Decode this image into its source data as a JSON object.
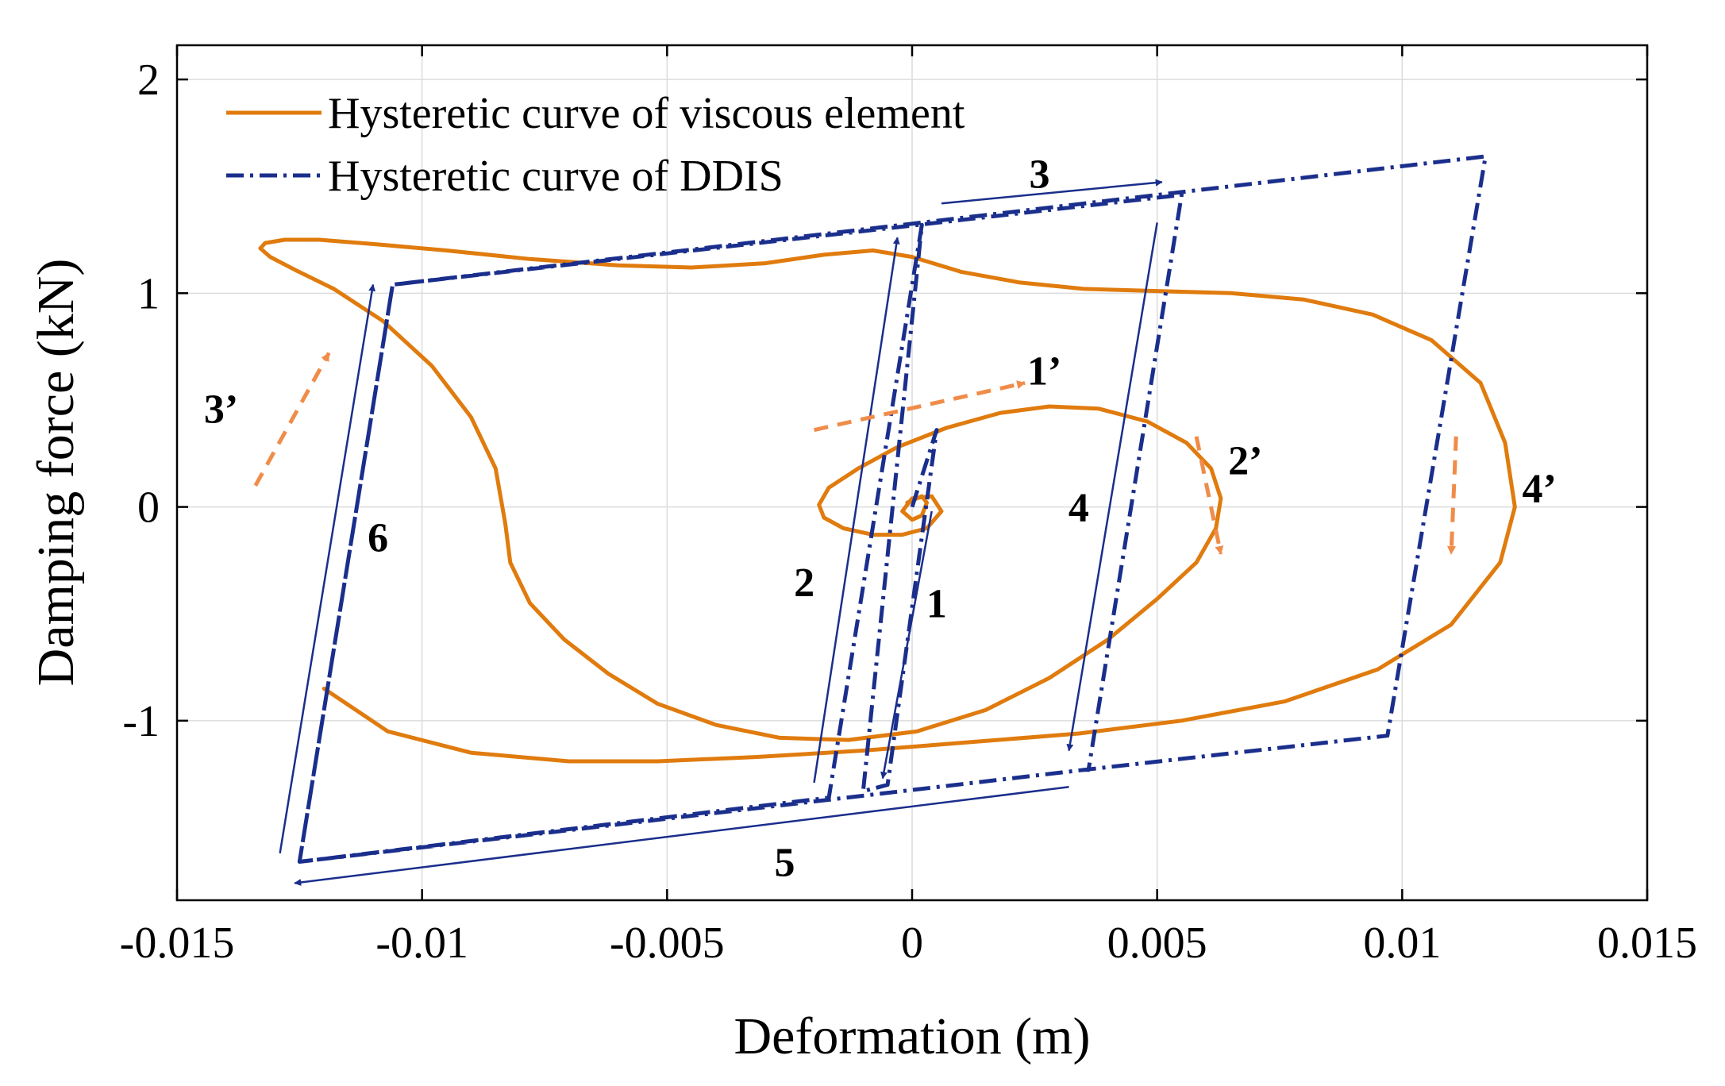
{
  "chart_data": {
    "type": "line",
    "title": "",
    "xlabel": "Deformation (m)",
    "ylabel": "Damping force (kN)",
    "xlim": [
      -0.015,
      0.015
    ],
    "ylim": [
      -1.84,
      2.16
    ],
    "grid": true,
    "legend_position": "top-left",
    "x_ticks": [
      {
        "value": -0.015,
        "label": "-0.015"
      },
      {
        "value": -0.01,
        "label": "-0.01"
      },
      {
        "value": -0.005,
        "label": "-0.005"
      },
      {
        "value": 0,
        "label": "0"
      },
      {
        "value": 0.005,
        "label": "0.005"
      },
      {
        "value": 0.01,
        "label": "0.01"
      },
      {
        "value": 0.015,
        "label": "0.015"
      }
    ],
    "y_ticks": [
      {
        "value": -1,
        "label": "-1"
      },
      {
        "value": 0,
        "label": "0"
      },
      {
        "value": 1,
        "label": "1"
      },
      {
        "value": 2,
        "label": "2"
      }
    ],
    "series": [
      {
        "name": "Hysteretic curve of viscous element",
        "color": "#E07B0E",
        "style": "solid",
        "x": [
          -0.0001,
          0.0002,
          0.0003,
          0.0002,
          0.0,
          -0.0002,
          0.0,
          0.0004,
          0.0006,
          0.0003,
          -0.0002,
          -0.0008,
          -0.0014,
          -0.0018,
          -0.0019,
          -0.0017,
          -0.0011,
          -0.0003,
          0.0007,
          0.0018,
          0.0028,
          0.0038,
          0.0048,
          0.0056,
          0.0061,
          0.0063,
          0.0062,
          0.0058,
          0.005,
          0.004,
          0.0028,
          0.0015,
          0.0001,
          -0.0013,
          -0.0027,
          -0.004,
          -0.0052,
          -0.0062,
          -0.0071,
          -0.0078,
          -0.0082,
          -0.0083,
          -0.0085,
          -0.009,
          -0.0098,
          -0.0108,
          -0.0118,
          -0.0126,
          -0.0131,
          -0.0133,
          -0.0132,
          -0.0128,
          -0.0121,
          -0.011,
          -0.0095,
          -0.0078,
          -0.006,
          -0.0045,
          -0.003,
          -0.0018,
          -0.0008,
          0.0,
          0.001,
          0.0022,
          0.0035,
          0.005,
          0.0065,
          0.008,
          0.0094,
          0.0106,
          0.0116,
          0.0121,
          0.0123,
          0.012,
          0.011,
          0.0095,
          0.0076,
          0.0055,
          0.0034,
          0.0012,
          -0.001,
          -0.0032,
          -0.0052,
          -0.007,
          -0.009,
          -0.0107,
          -0.012
        ],
        "y": [
          0.02,
          0.05,
          0.02,
          -0.04,
          -0.06,
          -0.02,
          0.04,
          0.05,
          -0.02,
          -0.1,
          -0.13,
          -0.13,
          -0.1,
          -0.05,
          0.01,
          0.09,
          0.18,
          0.28,
          0.37,
          0.44,
          0.47,
          0.46,
          0.4,
          0.3,
          0.18,
          0.04,
          -0.1,
          -0.26,
          -0.43,
          -0.62,
          -0.8,
          -0.95,
          -1.05,
          -1.09,
          -1.08,
          -1.02,
          -0.92,
          -0.78,
          -0.62,
          -0.45,
          -0.26,
          -0.08,
          0.18,
          0.42,
          0.66,
          0.87,
          1.02,
          1.11,
          1.17,
          1.21,
          1.235,
          1.25,
          1.25,
          1.23,
          1.2,
          1.16,
          1.13,
          1.12,
          1.14,
          1.18,
          1.2,
          1.17,
          1.1,
          1.05,
          1.02,
          1.01,
          1.0,
          0.97,
          0.9,
          0.78,
          0.58,
          0.3,
          0.0,
          -0.26,
          -0.55,
          -0.76,
          -0.91,
          -1.0,
          -1.06,
          -1.1,
          -1.14,
          -1.17,
          -1.19,
          -1.19,
          -1.15,
          -1.05,
          -0.85
        ]
      },
      {
        "name": "Hysteretic curve of DDIS",
        "color": "#1A2E8C",
        "style": "dash-dot",
        "x": [
          0.0,
          0.0005,
          -0.0005,
          -0.001,
          0.0002,
          -0.0017,
          -0.0125,
          -0.0106,
          0.0055,
          0.0036,
          0.0035,
          -0.0125,
          -0.0106,
          0.0117,
          0.0097,
          0.0035
        ],
        "y": [
          0.0,
          0.36,
          -1.3,
          -1.33,
          1.32,
          -1.36,
          -1.66,
          1.04,
          1.46,
          -1.23,
          -1.23,
          -1.66,
          1.04,
          1.64,
          -1.07,
          -1.23
        ]
      }
    ],
    "annotations": [
      {
        "text": "1",
        "x": 0.0005,
        "y": -0.45
      },
      {
        "text": "2",
        "x": -0.0022,
        "y": -0.35
      },
      {
        "text": "3",
        "x": 0.0026,
        "y": 1.56
      },
      {
        "text": "4",
        "x": 0.0034,
        "y": 0.0
      },
      {
        "text": "5",
        "x": -0.0026,
        "y": -1.66
      },
      {
        "text": "6",
        "x": -0.0109,
        "y": -0.14
      },
      {
        "text": "1’",
        "x": 0.0027,
        "y": 0.64
      },
      {
        "text": "2’",
        "x": 0.0068,
        "y": 0.22
      },
      {
        "text": "3’",
        "x": -0.0141,
        "y": 0.46
      },
      {
        "text": "4’",
        "x": 0.0128,
        "y": 0.09
      }
    ],
    "direction_arrows": [
      {
        "name": "1",
        "color": "#1A2E8C",
        "style": "solid",
        "from": [
          0.0004,
          -0.02
        ],
        "to": [
          -0.0006,
          -1.27
        ]
      },
      {
        "name": "2",
        "color": "#1A2E8C",
        "style": "solid",
        "from": [
          -0.002,
          -1.29
        ],
        "to": [
          -0.0003,
          1.26
        ]
      },
      {
        "name": "3",
        "color": "#1A2E8C",
        "style": "solid",
        "from": [
          0.0006,
          1.42
        ],
        "to": [
          0.0051,
          1.52
        ]
      },
      {
        "name": "4",
        "color": "#1A2E8C",
        "style": "solid",
        "from": [
          0.005,
          1.33
        ],
        "to": [
          0.0032,
          -1.14
        ]
      },
      {
        "name": "5",
        "color": "#1A2E8C",
        "style": "solid",
        "from": [
          0.0032,
          -1.31
        ],
        "to": [
          -0.0126,
          -1.76
        ]
      },
      {
        "name": "6",
        "color": "#1A2E8C",
        "style": "solid",
        "from": [
          -0.0129,
          -1.62
        ],
        "to": [
          -0.011,
          1.04
        ]
      },
      {
        "name": "1’",
        "color": "#F08C4A",
        "style": "dashed",
        "from": [
          -0.002,
          0.36
        ],
        "to": [
          0.0023,
          0.58
        ]
      },
      {
        "name": "2’",
        "color": "#F08C4A",
        "style": "dashed",
        "from": [
          0.0058,
          0.33
        ],
        "to": [
          0.0063,
          -0.22
        ]
      },
      {
        "name": "3’",
        "color": "#F08C4A",
        "style": "dashed",
        "from": [
          -0.0134,
          0.1
        ],
        "to": [
          -0.0119,
          0.72
        ]
      },
      {
        "name": "4’",
        "color": "#F08C4A",
        "style": "dashed",
        "from": [
          0.0111,
          0.33
        ],
        "to": [
          0.011,
          -0.22
        ]
      }
    ]
  }
}
